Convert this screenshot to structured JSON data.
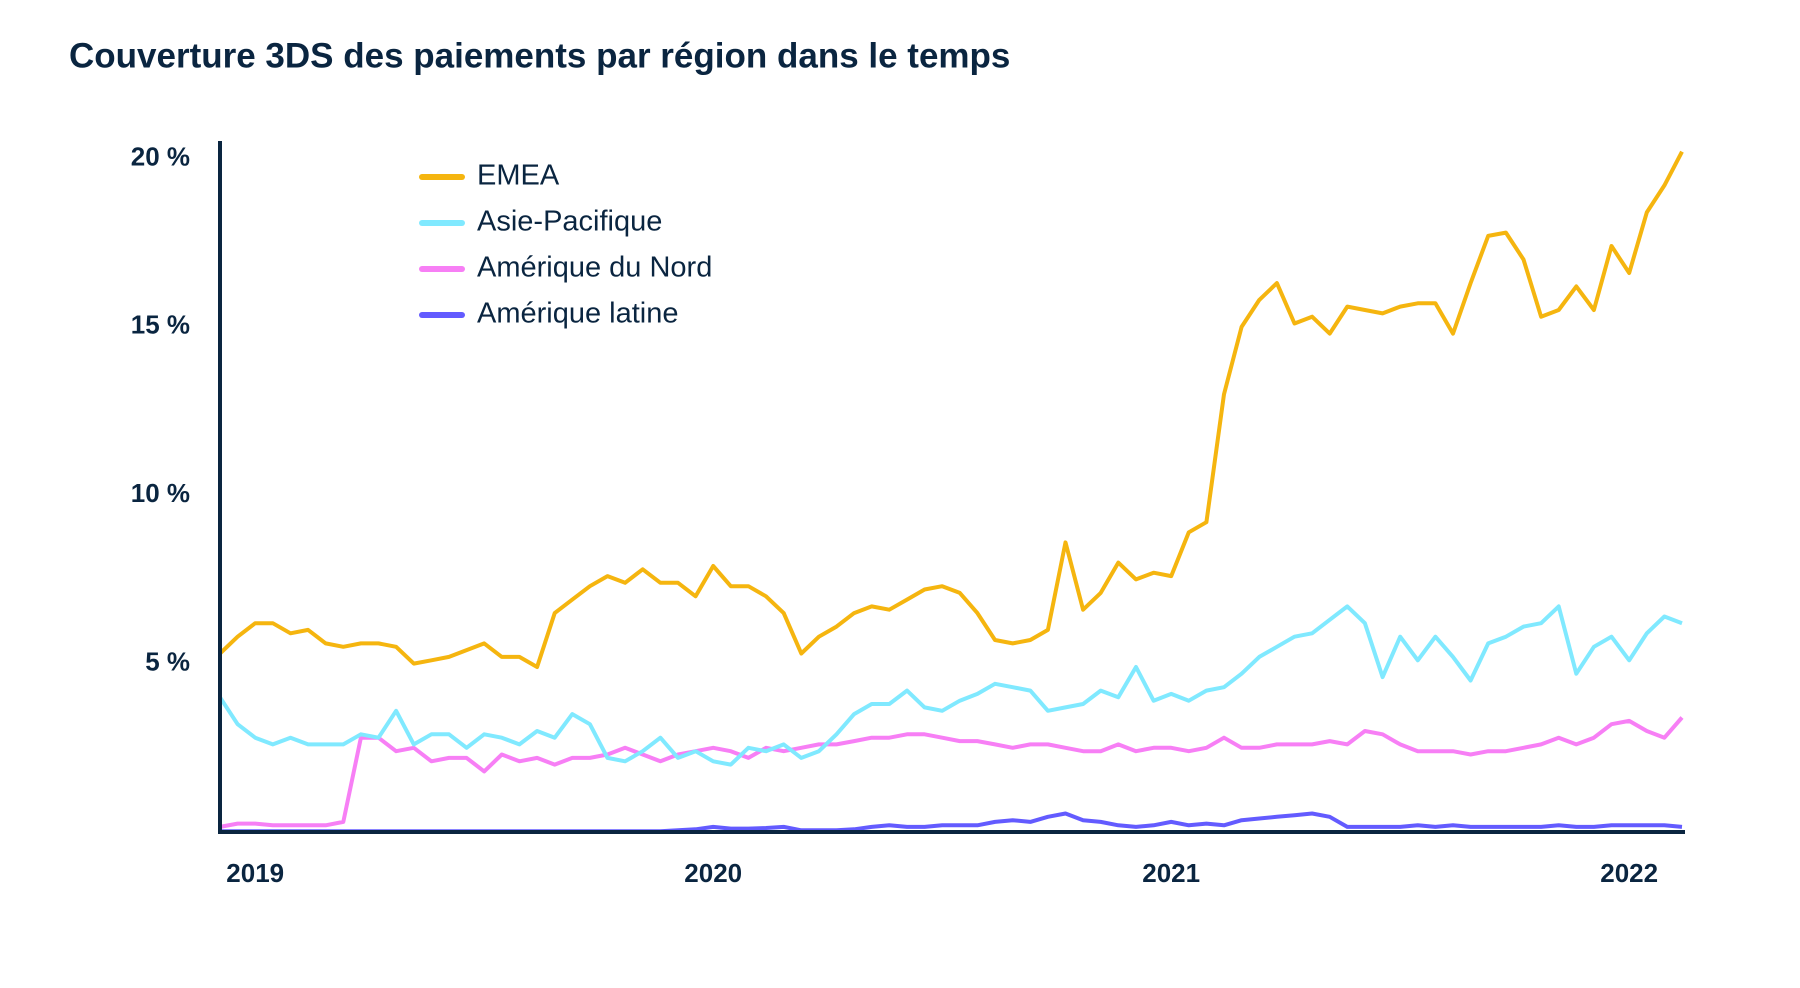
{
  "chart_data": {
    "type": "line",
    "title": "Couverture 3DS des paiements par région dans le temps",
    "categories": [
      null,
      null,
      "2019",
      null,
      null,
      null,
      null,
      null,
      null,
      null,
      null,
      null,
      null,
      null,
      null,
      null,
      null,
      null,
      null,
      null,
      null,
      null,
      null,
      null,
      null,
      null,
      null,
      null,
      "2020",
      null,
      null,
      null,
      null,
      null,
      null,
      null,
      null,
      null,
      null,
      null,
      null,
      null,
      null,
      null,
      null,
      null,
      null,
      null,
      null,
      null,
      null,
      null,
      null,
      null,
      "2021",
      null,
      null,
      null,
      null,
      null,
      null,
      null,
      null,
      null,
      null,
      null,
      null,
      null,
      null,
      null,
      null,
      null,
      null,
      null,
      null,
      null,
      null,
      null,
      null,
      null,
      "2022",
      null,
      null,
      null
    ],
    "series": [
      {
        "name": "EMEA",
        "color": "#f5b50f",
        "values": [
          5.3,
          5.8,
          6.2,
          6.2,
          5.9,
          6.0,
          5.6,
          5.5,
          5.6,
          5.6,
          5.5,
          5.0,
          5.1,
          5.2,
          5.4,
          5.6,
          5.2,
          5.2,
          4.9,
          6.5,
          6.9,
          7.3,
          7.6,
          7.4,
          7.8,
          7.4,
          7.4,
          7.0,
          7.9,
          7.3,
          7.3,
          7.0,
          6.5,
          5.3,
          5.8,
          6.1,
          6.5,
          6.7,
          6.6,
          6.9,
          7.2,
          7.3,
          7.1,
          6.5,
          5.7,
          5.6,
          5.7,
          6.0,
          8.6,
          6.6,
          7.1,
          8.0,
          7.5,
          7.7,
          7.6,
          8.9,
          9.2,
          13.0,
          15.0,
          15.8,
          16.3,
          15.1,
          15.3,
          14.8,
          15.6,
          15.5,
          15.4,
          15.6,
          15.7,
          15.7,
          14.8,
          16.3,
          17.7,
          17.8,
          17.0,
          15.3,
          15.5,
          16.2,
          15.5,
          17.4,
          16.6,
          18.4,
          19.2,
          20.2
        ]
      },
      {
        "name": "Asie-Pacifique",
        "color": "#80e9ff",
        "values": [
          4.0,
          3.2,
          2.8,
          2.6,
          2.8,
          2.6,
          2.6,
          2.6,
          2.9,
          2.8,
          3.6,
          2.6,
          2.9,
          2.9,
          2.5,
          2.9,
          2.8,
          2.6,
          3.0,
          2.8,
          3.5,
          3.2,
          2.2,
          2.1,
          2.4,
          2.8,
          2.2,
          2.4,
          2.1,
          2.0,
          2.5,
          2.4,
          2.6,
          2.2,
          2.4,
          2.9,
          3.5,
          3.8,
          3.8,
          4.2,
          3.7,
          3.6,
          3.9,
          4.1,
          4.4,
          4.3,
          4.2,
          3.6,
          3.7,
          3.8,
          4.2,
          4.0,
          4.9,
          3.9,
          4.1,
          3.9,
          4.2,
          4.3,
          4.7,
          5.2,
          5.5,
          5.8,
          5.9,
          6.3,
          6.7,
          6.2,
          4.6,
          5.8,
          5.1,
          5.8,
          5.2,
          4.5,
          5.6,
          5.8,
          6.1,
          6.2,
          6.7,
          4.7,
          5.5,
          5.8,
          5.1,
          5.9,
          6.4,
          6.2
        ]
      },
      {
        "name": "Amérique du Nord",
        "color": "#f77ff5",
        "values": [
          0.15,
          0.25,
          0.25,
          0.2,
          0.2,
          0.2,
          0.2,
          0.3,
          2.8,
          2.8,
          2.4,
          2.5,
          2.1,
          2.2,
          2.2,
          1.8,
          2.3,
          2.1,
          2.2,
          2.0,
          2.2,
          2.2,
          2.3,
          2.5,
          2.3,
          2.1,
          2.3,
          2.4,
          2.5,
          2.4,
          2.2,
          2.5,
          2.4,
          2.5,
          2.6,
          2.6,
          2.7,
          2.8,
          2.8,
          2.9,
          2.9,
          2.8,
          2.7,
          2.7,
          2.6,
          2.5,
          2.6,
          2.6,
          2.5,
          2.4,
          2.4,
          2.6,
          2.4,
          2.5,
          2.5,
          2.4,
          2.5,
          2.8,
          2.5,
          2.5,
          2.6,
          2.6,
          2.6,
          2.7,
          2.6,
          3.0,
          2.9,
          2.6,
          2.4,
          2.4,
          2.4,
          2.3,
          2.4,
          2.4,
          2.5,
          2.6,
          2.8,
          2.6,
          2.8,
          3.2,
          3.3,
          3.0,
          2.8,
          3.4
        ]
      },
      {
        "name": "Amérique latine",
        "color": "#635bff",
        "values": [
          0.02,
          0.02,
          0.02,
          0.02,
          0.02,
          0.02,
          0.02,
          0.02,
          0.02,
          0.02,
          0.02,
          0.02,
          0.02,
          0.02,
          0.02,
          0.02,
          0.02,
          0.02,
          0.02,
          0.02,
          0.02,
          0.02,
          0.02,
          0.02,
          0.02,
          0.02,
          0.05,
          0.08,
          0.15,
          0.1,
          0.1,
          0.12,
          0.15,
          0.05,
          0.05,
          0.05,
          0.08,
          0.15,
          0.2,
          0.15,
          0.15,
          0.2,
          0.2,
          0.2,
          0.3,
          0.35,
          0.3,
          0.45,
          0.55,
          0.35,
          0.3,
          0.2,
          0.15,
          0.2,
          0.3,
          0.2,
          0.25,
          0.2,
          0.35,
          0.4,
          0.45,
          0.5,
          0.55,
          0.45,
          0.15,
          0.15,
          0.15,
          0.15,
          0.2,
          0.15,
          0.2,
          0.15,
          0.15,
          0.15,
          0.15,
          0.15,
          0.2,
          0.15,
          0.15,
          0.2,
          0.2,
          0.2,
          0.2,
          0.15
        ]
      }
    ],
    "ylim": [
      0,
      20.4
    ],
    "yticks": [
      {
        "value": 5,
        "label": "5 %"
      },
      {
        "value": 10,
        "label": "10 %"
      },
      {
        "value": 15,
        "label": "15 %"
      },
      {
        "value": 20,
        "label": "20 %"
      }
    ],
    "grid": false,
    "legend": "upper-left"
  }
}
